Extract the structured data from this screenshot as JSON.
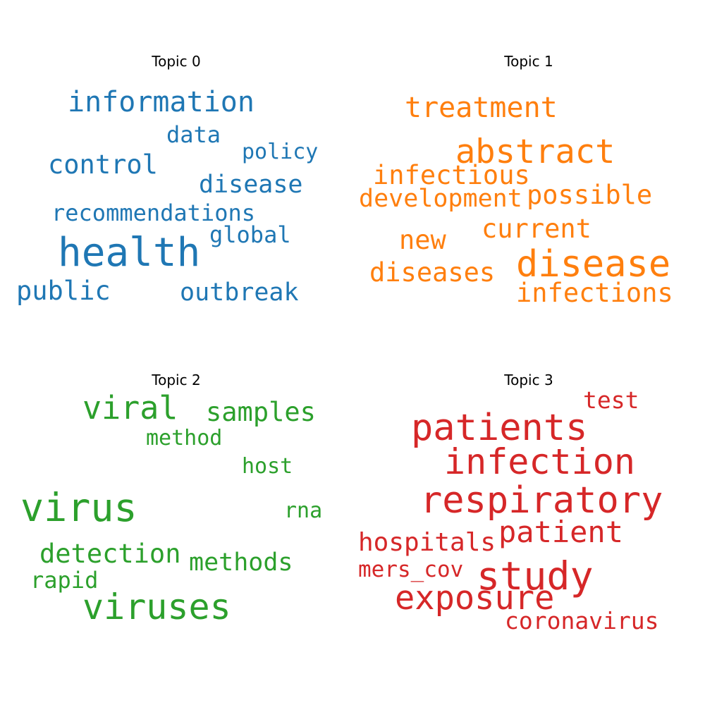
{
  "chart_data": [
    {
      "type": "wordcloud",
      "title": "Topic 0",
      "color": "#1f77b4",
      "words": [
        "information",
        "data",
        "policy",
        "control",
        "disease",
        "recommendations",
        "global",
        "health",
        "public",
        "outbreak"
      ]
    },
    {
      "type": "wordcloud",
      "title": "Topic 1",
      "color": "#ff7f0e",
      "words": [
        "treatment",
        "abstract",
        "infectious",
        "development",
        "possible",
        "current",
        "new",
        "disease",
        "diseases",
        "infections"
      ]
    },
    {
      "type": "wordcloud",
      "title": "Topic 2",
      "color": "#2ca02c",
      "words": [
        "viral",
        "samples",
        "method",
        "host",
        "virus",
        "rna",
        "detection",
        "methods",
        "rapid",
        "viruses"
      ]
    },
    {
      "type": "wordcloud",
      "title": "Topic 3",
      "color": "#d62728",
      "words": [
        "test",
        "patients",
        "infection",
        "respiratory",
        "patient",
        "hospitals",
        "mers_cov",
        "study",
        "exposure",
        "coronavirus"
      ]
    }
  ]
}
